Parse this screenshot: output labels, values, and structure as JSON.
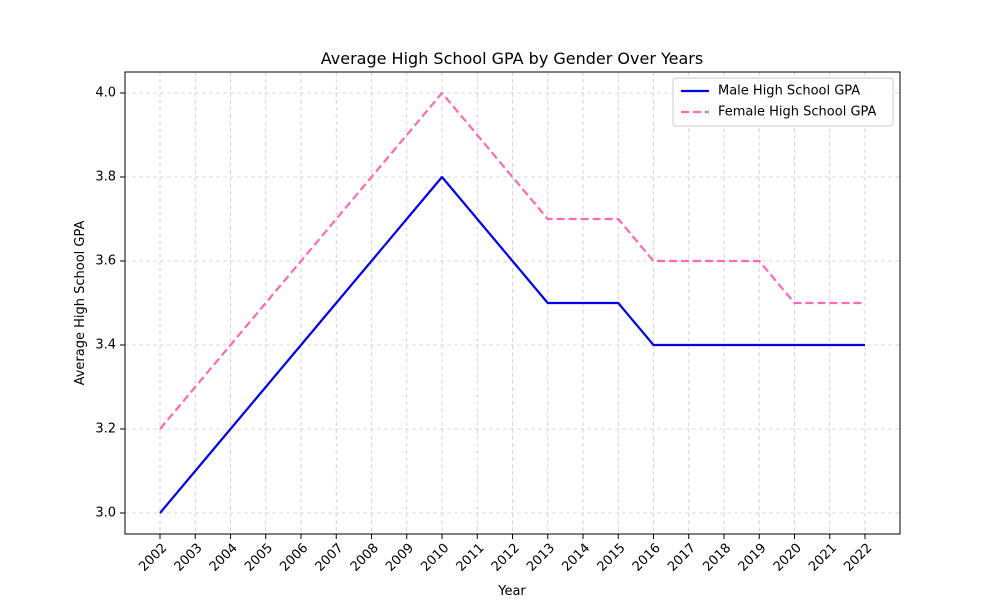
{
  "chart_data": {
    "type": "line",
    "title": "Average High School GPA by Gender Over Years",
    "xlabel": "Year",
    "ylabel": "Average High School GPA",
    "x": [
      "2002",
      "2003",
      "2004",
      "2005",
      "2006",
      "2007",
      "2008",
      "2009",
      "2010",
      "2011",
      "2012",
      "2013",
      "2014",
      "2015",
      "2016",
      "2017",
      "2018",
      "2019",
      "2020",
      "2021",
      "2022"
    ],
    "y_ticks": [
      "3.0",
      "3.2",
      "3.4",
      "3.6",
      "3.8",
      "4.0"
    ],
    "ylim": [
      2.95,
      4.05
    ],
    "grid": true,
    "legend_position": "top-right",
    "series": [
      {
        "name": "Male High School GPA",
        "color": "#0000ee",
        "line_style": "solid",
        "values": [
          3.0,
          3.1,
          3.2,
          3.3,
          3.4,
          3.5,
          3.6,
          3.7,
          3.8,
          3.7,
          3.6,
          3.5,
          3.5,
          3.5,
          3.4,
          3.4,
          3.4,
          3.4,
          3.4,
          3.4,
          3.4
        ]
      },
      {
        "name": "Female High School GPA",
        "color": "#ff69b4",
        "line_style": "dashed",
        "values": [
          3.2,
          3.3,
          3.4,
          3.5,
          3.6,
          3.7,
          3.8,
          3.9,
          4.0,
          3.9,
          3.8,
          3.7,
          3.7,
          3.7,
          3.6,
          3.6,
          3.6,
          3.6,
          3.5,
          3.5,
          3.5
        ]
      }
    ]
  }
}
